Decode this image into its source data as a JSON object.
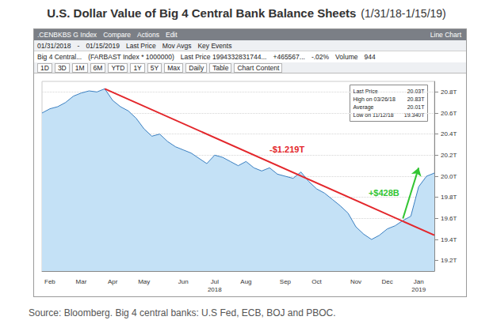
{
  "chart_data": {
    "type": "line",
    "title": "U.S. Dollar Value of Big 4 Central Bank Balance Sheets",
    "subtitle": "(1/31/18-1/15/19)",
    "source": "Source: Bloomberg. Big 4 central banks: U.S Fed, ECB, BOJ and PBOC.",
    "toolbar": [
      [
        ".CENBKBS G Index",
        "Compare",
        "Actions",
        "Edit",
        "Line Chart"
      ],
      [
        "01/31/2018",
        "-",
        "01/15/2019",
        "Last Price",
        "Mov Avgs",
        "Key Events"
      ],
      [
        "Big 4 Central...",
        "(FARBAST Index * 1000000)",
        "Last Price 1994332831744...",
        "+465567...",
        "-.02%",
        "Volume",
        "944"
      ],
      [
        "1D",
        "3D",
        "1M",
        "6M",
        "YTD",
        "1Y",
        "5Y",
        "Max",
        "Daily",
        "Table",
        "Chart Content"
      ]
    ],
    "categories": [
      null,
      "Feb",
      null,
      null,
      null,
      "Mar",
      null,
      null,
      null,
      "Apr",
      null,
      null,
      null,
      "May",
      null,
      null,
      null,
      null,
      "Jun",
      null,
      null,
      null,
      "Jul\n2018",
      null,
      null,
      null,
      "Aug",
      null,
      null,
      null,
      null,
      "Sep",
      null,
      null,
      null,
      "Oct",
      null,
      null,
      null,
      null,
      "Nov",
      null,
      null,
      null,
      "Dec",
      null,
      null,
      null,
      "Jan\n2019",
      null,
      null
    ],
    "values": [
      20.6,
      20.64,
      20.66,
      20.7,
      20.76,
      20.79,
      20.81,
      20.8,
      20.83,
      20.72,
      20.66,
      20.62,
      20.55,
      20.45,
      20.38,
      20.4,
      20.33,
      20.28,
      20.25,
      20.22,
      20.17,
      20.12,
      20.2,
      20.18,
      20.14,
      20.1,
      20.14,
      20.08,
      20.05,
      20.08,
      20.02,
      20.0,
      19.98,
      20.04,
      19.95,
      19.88,
      19.84,
      19.78,
      19.72,
      19.65,
      19.52,
      19.45,
      19.4,
      19.44,
      19.5,
      19.53,
      19.58,
      19.62,
      19.9,
      20.0,
      20.03
    ],
    "color": "#3a7fc0",
    "ylim": [
      19.1,
      20.9
    ],
    "yticks": [
      {
        "value": 19.2,
        "label": "19.2T"
      },
      {
        "value": 19.4,
        "label": "19.4T"
      },
      {
        "value": 19.6,
        "label": "19.6T"
      },
      {
        "value": 19.8,
        "label": "19.8T"
      },
      {
        "value": 20.0,
        "label": "20.0T"
      },
      {
        "value": 20.2,
        "label": "20.2T"
      },
      {
        "value": 20.4,
        "label": "20.4T"
      },
      {
        "value": 20.6,
        "label": "20.6T"
      },
      {
        "value": 20.8,
        "label": "20.8T"
      }
    ],
    "grid": true,
    "annotations": [
      {
        "text": "-$1.219T",
        "color": "#e3262b",
        "marker": "none",
        "from": [
          8,
          20.83
        ],
        "to": [
          50,
          19.44
        ]
      },
      {
        "text": "+$428B",
        "color": "#33c533",
        "marker": "arrow",
        "from": [
          46,
          19.6
        ],
        "to": [
          48,
          20.08
        ]
      }
    ],
    "stats": [
      {
        "label": "Last Price",
        "value": "20.03T"
      },
      {
        "label": "High on 03/26/18",
        "value": "20.83T"
      },
      {
        "label": "Average",
        "value": "20.01T"
      },
      {
        "label": "Low on 11/12/18",
        "value": "19.340T"
      }
    ]
  }
}
